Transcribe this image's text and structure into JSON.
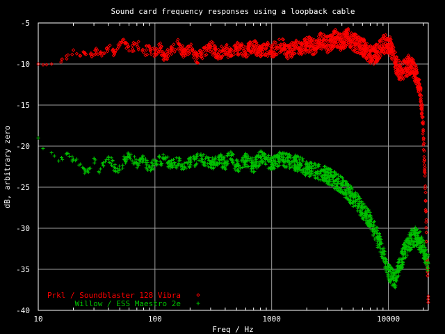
{
  "chart_data": {
    "type": "scatter",
    "title": "Sound card frequency responses using a loopback cable",
    "xlabel": "Freq / Hz",
    "ylabel": "dB, arbitrary zero",
    "x_scale": "log",
    "xlim": [
      10,
      22000
    ],
    "ylim": [
      -40,
      -5
    ],
    "x_ticks": [
      {
        "value": 10,
        "label": "10"
      },
      {
        "value": 100,
        "label": "100"
      },
      {
        "value": 1000,
        "label": "1000"
      },
      {
        "value": 10000,
        "label": "10000"
      }
    ],
    "y_ticks": [
      {
        "value": -5,
        "label": "-5"
      },
      {
        "value": -10,
        "label": "-10"
      },
      {
        "value": -15,
        "label": "-15"
      },
      {
        "value": -20,
        "label": "-20"
      },
      {
        "value": -25,
        "label": "-25"
      },
      {
        "value": -30,
        "label": "-30"
      },
      {
        "value": -35,
        "label": "-35"
      },
      {
        "value": -40,
        "label": "-40"
      }
    ],
    "grid": true,
    "legend_position": "bottom-left",
    "series": [
      {
        "name": "Prkl / Soundblaster 128 Vibra",
        "color": "#ff0000",
        "marker": "diamond",
        "points": [
          [
            10,
            -10.0
          ],
          [
            11,
            -10.1
          ],
          [
            13,
            -10.0
          ],
          [
            16,
            -9.4
          ],
          [
            18,
            -8.9
          ],
          [
            20,
            -8.3
          ],
          [
            23,
            -9.0
          ],
          [
            25,
            -8.6
          ],
          [
            28,
            -8.8
          ],
          [
            32,
            -8.3
          ],
          [
            36,
            -8.7
          ],
          [
            40,
            -7.9
          ],
          [
            45,
            -8.8
          ],
          [
            50,
            -7.7
          ],
          [
            55,
            -7.4
          ],
          [
            60,
            -8.4
          ],
          [
            70,
            -7.6
          ],
          [
            80,
            -8.6
          ],
          [
            90,
            -8.0
          ],
          [
            100,
            -8.7
          ],
          [
            110,
            -7.8
          ],
          [
            120,
            -9.2
          ],
          [
            140,
            -8.3
          ],
          [
            160,
            -7.6
          ],
          [
            180,
            -8.8
          ],
          [
            200,
            -8.1
          ],
          [
            230,
            -9.3
          ],
          [
            260,
            -8.5
          ],
          [
            300,
            -7.9
          ],
          [
            350,
            -8.8
          ],
          [
            400,
            -8.2
          ],
          [
            450,
            -9.0
          ],
          [
            500,
            -8.0
          ],
          [
            600,
            -8.5
          ],
          [
            700,
            -7.8
          ],
          [
            800,
            -8.7
          ],
          [
            900,
            -8.1
          ],
          [
            1000,
            -8.4
          ],
          [
            1200,
            -7.6
          ],
          [
            1400,
            -8.6
          ],
          [
            1600,
            -7.9
          ],
          [
            1800,
            -8.3
          ],
          [
            2000,
            -7.5
          ],
          [
            2300,
            -8.0
          ],
          [
            2600,
            -7.1
          ],
          [
            3000,
            -7.7
          ],
          [
            3500,
            -6.8
          ],
          [
            4000,
            -7.4
          ],
          [
            4500,
            -6.6
          ],
          [
            5000,
            -7.3
          ],
          [
            5500,
            -7.6
          ],
          [
            6000,
            -7.9
          ],
          [
            6500,
            -8.4
          ],
          [
            7000,
            -8.8
          ],
          [
            7500,
            -9.0
          ],
          [
            8000,
            -8.6
          ],
          [
            8500,
            -8.1
          ],
          [
            9000,
            -7.7
          ],
          [
            9500,
            -7.5
          ],
          [
            10000,
            -7.6
          ],
          [
            10500,
            -8.0
          ],
          [
            11000,
            -8.8
          ],
          [
            11500,
            -9.8
          ],
          [
            12000,
            -10.6
          ],
          [
            13000,
            -10.9
          ],
          [
            14000,
            -10.5
          ],
          [
            15000,
            -10.1
          ],
          [
            16000,
            -10.4
          ],
          [
            17000,
            -11.0
          ],
          [
            18000,
            -12.2
          ],
          [
            19000,
            -14.2
          ],
          [
            19500,
            -16.0
          ],
          [
            20000,
            -19.0
          ],
          [
            20500,
            -23.0
          ],
          [
            21000,
            -28.0
          ],
          [
            21500,
            -34.0
          ],
          [
            22000,
            -38.3
          ]
        ]
      },
      {
        "name": "Willow / ESS Maestro 2e",
        "color": "#00c000",
        "marker": "plus",
        "points": [
          [
            10,
            -19.0
          ],
          [
            11,
            -20.3
          ],
          [
            13,
            -20.8
          ],
          [
            15,
            -21.8
          ],
          [
            18,
            -20.9
          ],
          [
            20,
            -21.6
          ],
          [
            23,
            -22.2
          ],
          [
            25,
            -23.3
          ],
          [
            28,
            -22.7
          ],
          [
            30,
            -21.5
          ],
          [
            33,
            -23.1
          ],
          [
            36,
            -22.0
          ],
          [
            40,
            -21.3
          ],
          [
            45,
            -22.6
          ],
          [
            50,
            -22.9
          ],
          [
            55,
            -21.6
          ],
          [
            60,
            -21.1
          ],
          [
            70,
            -22.2
          ],
          [
            80,
            -21.7
          ],
          [
            90,
            -22.6
          ],
          [
            100,
            -22.1
          ],
          [
            120,
            -21.5
          ],
          [
            140,
            -22.4
          ],
          [
            160,
            -21.8
          ],
          [
            180,
            -22.6
          ],
          [
            200,
            -22.0
          ],
          [
            250,
            -21.5
          ],
          [
            300,
            -22.2
          ],
          [
            350,
            -21.6
          ],
          [
            400,
            -22.1
          ],
          [
            450,
            -21.1
          ],
          [
            500,
            -22.5
          ],
          [
            600,
            -21.7
          ],
          [
            700,
            -22.4
          ],
          [
            800,
            -21.4
          ],
          [
            1000,
            -22.0
          ],
          [
            1200,
            -21.6
          ],
          [
            1500,
            -21.9
          ],
          [
            1800,
            -22.3
          ],
          [
            2000,
            -22.8
          ],
          [
            2500,
            -23.1
          ],
          [
            3000,
            -23.6
          ],
          [
            3500,
            -24.2
          ],
          [
            4000,
            -24.8
          ],
          [
            4500,
            -25.5
          ],
          [
            5000,
            -26.3
          ],
          [
            5500,
            -27.0
          ],
          [
            6000,
            -27.7
          ],
          [
            6500,
            -28.4
          ],
          [
            7000,
            -29.2
          ],
          [
            7500,
            -30.1
          ],
          [
            8000,
            -31.0
          ],
          [
            8500,
            -32.0
          ],
          [
            9000,
            -33.0
          ],
          [
            9500,
            -34.0
          ],
          [
            10000,
            -35.0
          ],
          [
            10500,
            -35.8
          ],
          [
            11000,
            -36.3
          ],
          [
            11500,
            -36.1
          ],
          [
            12000,
            -35.3
          ],
          [
            13000,
            -33.8
          ],
          [
            14000,
            -32.6
          ],
          [
            15000,
            -31.8
          ],
          [
            16000,
            -31.3
          ],
          [
            17000,
            -30.9
          ],
          [
            18000,
            -31.2
          ],
          [
            19000,
            -31.8
          ],
          [
            20000,
            -32.6
          ],
          [
            21000,
            -33.5
          ],
          [
            22000,
            -34.3
          ]
        ]
      }
    ]
  }
}
